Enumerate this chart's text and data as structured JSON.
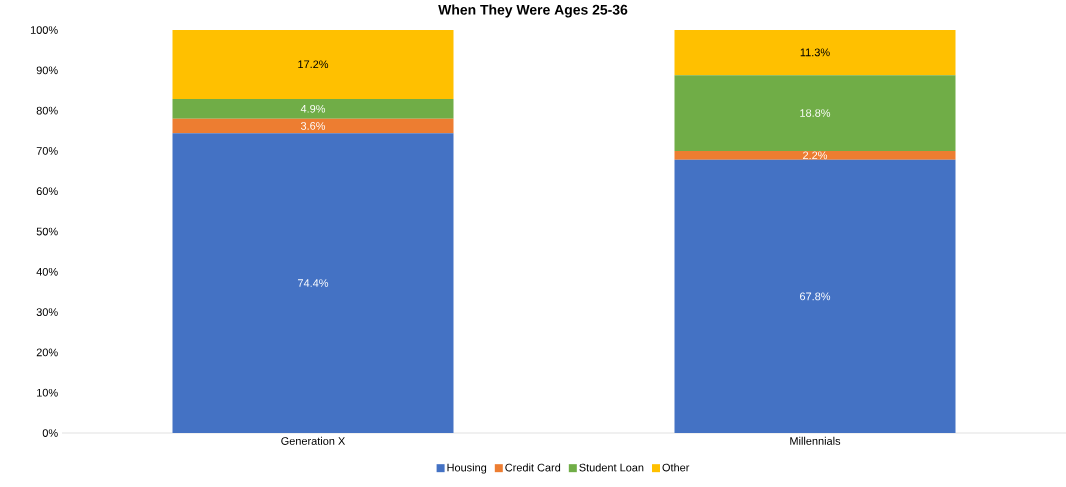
{
  "chart_data": {
    "type": "bar",
    "title": "When They Were Ages 25-36",
    "stacked": true,
    "categories": [
      "Generation X",
      "Millennials"
    ],
    "series": [
      {
        "name": "Housing",
        "color": "#4472c4",
        "values": [
          74.4,
          67.8
        ],
        "value_labels": [
          "74.4%",
          "67.8%"
        ]
      },
      {
        "name": "Credit Card",
        "color": "#ed7d31",
        "values": [
          3.6,
          2.2
        ],
        "value_labels": [
          "3.6%",
          "2.2%"
        ]
      },
      {
        "name": "Student Loan",
        "color": "#70ad47",
        "values": [
          4.9,
          18.8
        ],
        "value_labels": [
          "4.9%",
          "18.8%"
        ]
      },
      {
        "name": "Other",
        "color": "#ffc000",
        "values": [
          17.2,
          11.3
        ],
        "value_labels": [
          "17.2%",
          "11.3%"
        ]
      }
    ],
    "ylim": [
      0,
      100
    ],
    "yticks": [
      {
        "value": 0,
        "label": "0%"
      },
      {
        "value": 10,
        "label": "10%"
      },
      {
        "value": 20,
        "label": "20%"
      },
      {
        "value": 30,
        "label": "30%"
      },
      {
        "value": 40,
        "label": "40%"
      },
      {
        "value": 50,
        "label": "50%"
      },
      {
        "value": 60,
        "label": "60%"
      },
      {
        "value": 70,
        "label": "70%"
      },
      {
        "value": 80,
        "label": "80%"
      },
      {
        "value": 90,
        "label": "90%"
      },
      {
        "value": 100,
        "label": "100%"
      }
    ],
    "legend": "bottom",
    "grid": false
  }
}
